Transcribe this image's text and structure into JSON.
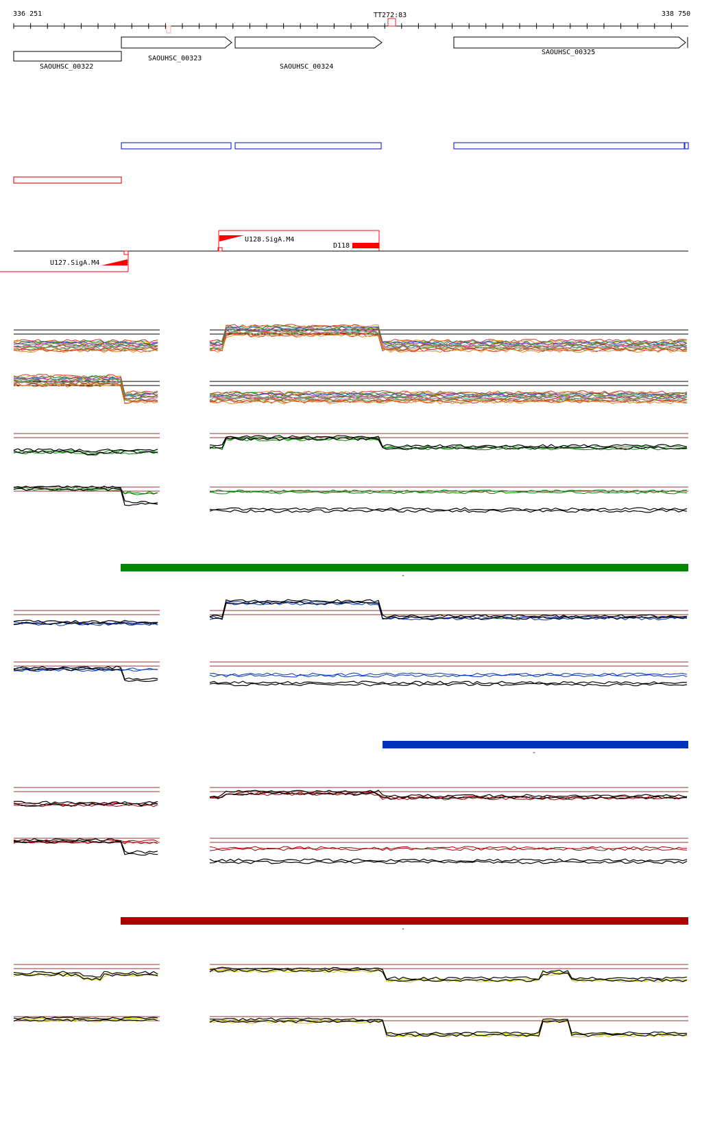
{
  "coords": {
    "start": "336 251",
    "end": "338 750"
  },
  "terminator": {
    "label": "TT272:83"
  },
  "genes": [
    {
      "id": "SAOUHSC_00322",
      "label": "SAOUHSC_00322",
      "strand": "-"
    },
    {
      "id": "SAOUHSC_00323",
      "label": "SAOUHSC_00323",
      "strand": "+"
    },
    {
      "id": "SAOUHSC_00324",
      "label": "SAOUHSC_00324",
      "strand": "+"
    },
    {
      "id": "SAOUHSC_00325",
      "label": "SAOUHSC_00325",
      "strand": "+"
    }
  ],
  "features": {
    "promoter_plus": "U128.SigA.M4",
    "promoter_minus": "U127.SigA.M4",
    "downstream": "D118"
  },
  "colors": {
    "plus_gene": "#2233cc",
    "minus_gene": "#dd2222",
    "feature": "#ff0000",
    "green": "#008800",
    "blue": "#0033bb",
    "red": "#aa0000",
    "yellow": "#cccc00",
    "guide": "#993333"
  },
  "segments": {
    "green_label": "-",
    "blue_label": "-",
    "red_label": "-"
  }
}
